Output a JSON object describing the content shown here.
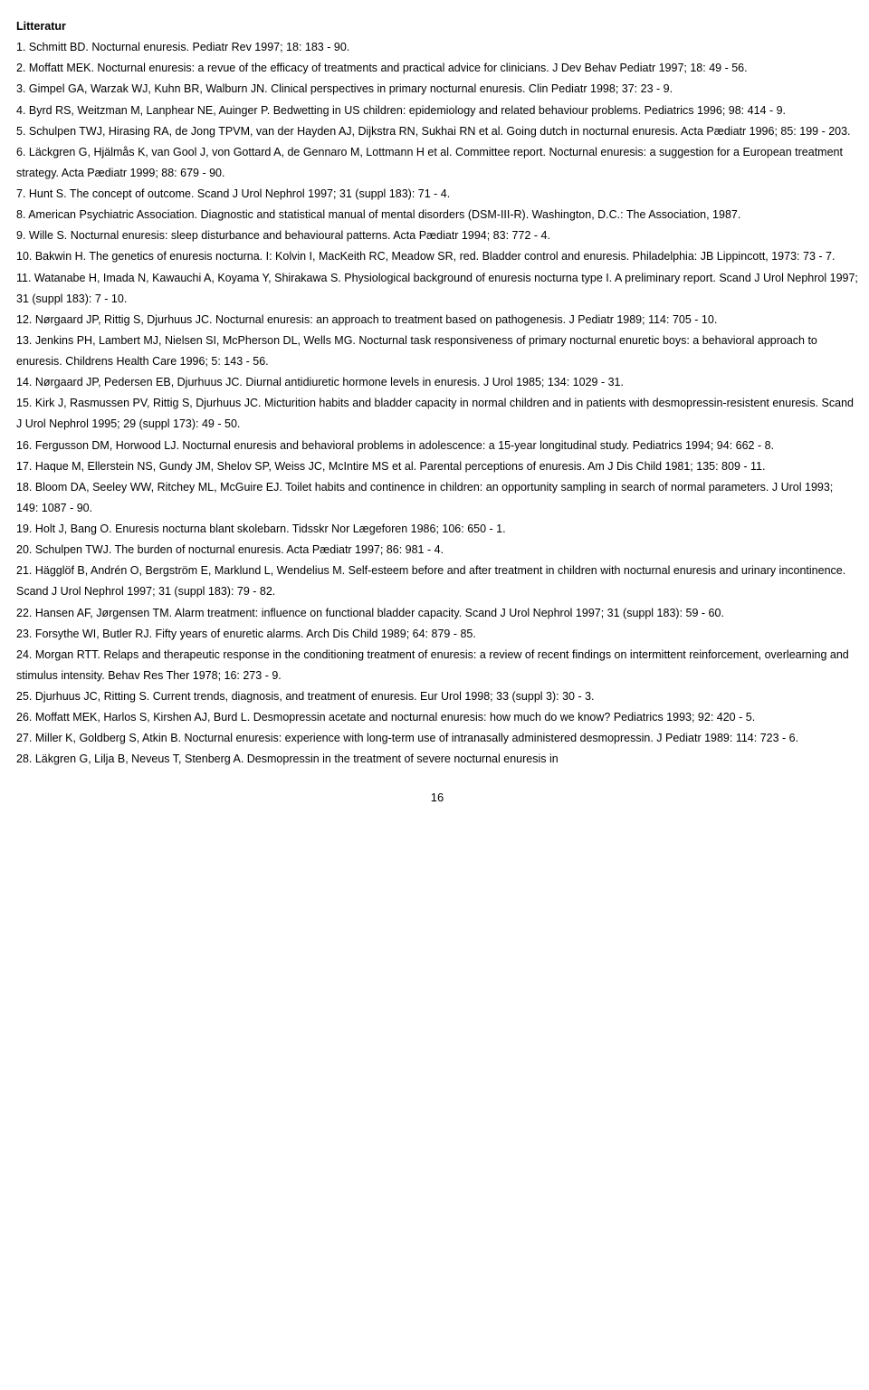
{
  "title": "Litteratur",
  "references": [
    "1. Schmitt BD. Nocturnal enuresis. Pediatr Rev 1997; 18: 183 - 90.",
    "2. Moffatt MEK. Nocturnal enuresis: a revue of the efficacy of treatments and practical advice for clinicians. J Dev Behav Pediatr 1997; 18: 49 - 56.",
    "3. Gimpel GA, Warzak WJ, Kuhn BR, Walburn JN. Clinical perspectives in primary nocturnal enuresis. Clin Pediatr 1998; 37: 23 - 9.",
    "4. Byrd RS, Weitzman M, Lanphear NE, Auinger P. Bedwetting in US children: epidemiology and related behaviour problems. Pediatrics 1996; 98: 414 - 9.",
    "5. Schulpen TWJ, Hirasing RA, de Jong TPVM, van der Hayden AJ, Dijkstra RN, Sukhai RN et al. Going dutch in nocturnal enuresis. Acta Pædiatr 1996; 85: 199 - 203.",
    "6. Läckgren G, Hjälmås K, van Gool J, von Gottard A, de Gennaro M, Lottmann H et al. Committee report. Nocturnal enuresis: a suggestion for a European treatment strategy. Acta Pædiatr 1999; 88: 679 - 90.",
    "7. Hunt S. The concept of outcome. Scand J Urol Nephrol 1997; 31 (suppl 183): 71 - 4.",
    "8. American Psychiatric Association. Diagnostic and statistical manual of mental disorders (DSM-III-R). Washington, D.C.: The Association, 1987.",
    "9. Wille S. Nocturnal enuresis: sleep disturbance and behavioural patterns. Acta Pædiatr 1994; 83: 772 - 4.",
    "10. Bakwin H. The genetics of enuresis nocturna. I: Kolvin I, MacKeith RC, Meadow SR, red. Bladder control and enuresis. Philadelphia: JB Lippincott, 1973: 73 - 7.",
    "11. Watanabe H, Imada N, Kawauchi A, Koyama Y, Shirakawa S. Physiological background of enuresis nocturna type I. A preliminary report. Scand J Urol Nephrol 1997; 31 (suppl 183): 7 - 10.",
    "12. Nørgaard JP, Rittig S, Djurhuus JC. Nocturnal enuresis: an approach to treatment based on pathogenesis. J Pediatr 1989; 114: 705 - 10.",
    "13. Jenkins PH, Lambert MJ, Nielsen SI, McPherson DL, Wells MG. Nocturnal task responsiveness of primary nocturnal enuretic boys: a behavioral approach to enuresis. Childrens Health Care 1996; 5: 143 - 56.",
    "14. Nørgaard JP, Pedersen EB, Djurhuus JC. Diurnal antidiuretic hormone levels in enuresis. J Urol 1985; 134: 1029 - 31.",
    "15. Kirk J, Rasmussen PV, Rittig S, Djurhuus JC. Micturition habits and bladder capacity in normal children and in patients with desmopressin-resistent enuresis. Scand J Urol Nephrol 1995; 29 (suppl 173): 49 - 50.",
    "16. Fergusson DM, Horwood LJ. Nocturnal enuresis and behavioral problems in adolescence: a 15-year longitudinal study. Pediatrics 1994; 94: 662 - 8.",
    "17. Haque M, Ellerstein NS, Gundy JM, Shelov SP, Weiss JC, McIntire MS et al. Parental perceptions of enuresis. Am J Dis Child 1981; 135: 809 - 11.",
    "18. Bloom DA, Seeley WW, Ritchey ML, McGuire EJ. Toilet habits and continence in children: an opportunity sampling in search of normal parameters. J Urol 1993; 149: 1087 - 90.",
    "19. Holt J, Bang O. Enuresis nocturna blant skolebarn. Tidsskr Nor Lægeforen 1986; 106: 650 - 1.",
    "20. Schulpen TWJ. The burden of nocturnal enuresis. Acta Pædiatr 1997; 86: 981 - 4.",
    "21. Hägglöf B, Andrén O, Bergström E, Marklund L, Wendelius M. Self-esteem before and after treatment in children with nocturnal enuresis and urinary incontinence. Scand J Urol Nephrol 1997; 31 (suppl 183): 79 - 82.",
    "22. Hansen AF, Jørgensen TM. Alarm treatment: influence on functional bladder capacity. Scand J Urol Nephrol 1997; 31 (suppl 183): 59 - 60.",
    "23. Forsythe WI, Butler RJ. Fifty years of enuretic alarms. Arch Dis Child 1989; 64: 879 - 85.",
    "24. Morgan RTT. Relaps and therapeutic response in the conditioning treatment of enuresis: a review of recent findings on intermittent reinforcement, overlearning and stimulus intensity. Behav Res Ther 1978; 16: 273 - 9.",
    "25. Djurhuus JC, Ritting S. Current trends, diagnosis, and treatment of enuresis. Eur Urol 1998; 33 (suppl 3): 30 - 3.",
    "26. Moffatt MEK, Harlos S, Kirshen AJ, Burd L. Desmopressin acetate and nocturnal enuresis: how much do we know? Pediatrics 1993; 92: 420 - 5.",
    "27. Miller K, Goldberg S, Atkin B. Nocturnal enuresis: experience with long-term use of intranasally administered desmopressin. J Pediatr 1989: 114: 723 - 6.",
    "28. Läkgren G, Lilja B, Neveus T, Stenberg A. Desmopressin in the treatment of severe nocturnal enuresis in"
  ],
  "page_number": "16"
}
